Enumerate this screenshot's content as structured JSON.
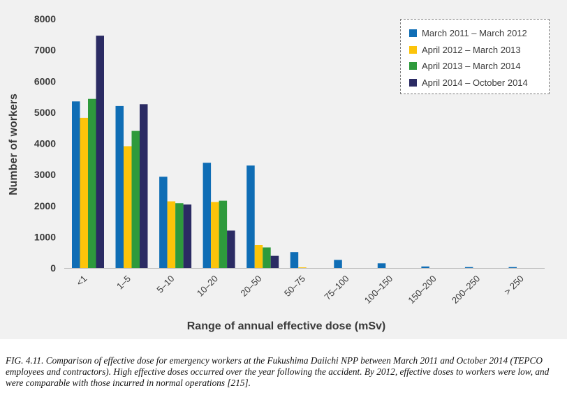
{
  "chart_data": {
    "type": "bar",
    "title": "",
    "xlabel": "Range of annual effective dose (mSv)",
    "ylabel": "Number of workers",
    "ylim": [
      0,
      8000
    ],
    "yticks": [
      0,
      1000,
      2000,
      3000,
      4000,
      5000,
      6000,
      7000,
      8000
    ],
    "grid": false,
    "legend_position": "top-right",
    "categories": [
      "<1",
      "1–5",
      "5–10",
      "10–20",
      "20–50",
      "50–75",
      "75–100",
      "100–150",
      "150–200",
      "200–250",
      "> 250"
    ],
    "series": [
      {
        "name": "March 2011 – March 2012",
        "color": "#0f6db5",
        "values": [
          5350,
          5200,
          2930,
          3380,
          3290,
          510,
          260,
          150,
          50,
          30,
          30
        ]
      },
      {
        "name": "April 2012 – March 2013",
        "color": "#fcc40a",
        "values": [
          4820,
          3910,
          2140,
          2120,
          740,
          20,
          0,
          0,
          0,
          0,
          0
        ]
      },
      {
        "name": "April 2013 – March 2014",
        "color": "#2e9a3c",
        "values": [
          5430,
          4400,
          2080,
          2160,
          660,
          0,
          0,
          0,
          0,
          0,
          0
        ]
      },
      {
        "name": "April 2014 – October 2014",
        "color": "#2b2b63",
        "values": [
          7460,
          5260,
          2040,
          1200,
          390,
          0,
          0,
          0,
          0,
          0,
          0
        ]
      }
    ]
  },
  "caption": "FIG. 4.11. Comparison of effective dose for emergency workers at the Fukushima Daiichi NPP between March 2011 and October 2014 (TEPCO employees and contractors). High effective doses occurred over the year following the accident. By 2012, effective doses to workers were low, and were comparable with those incurred in normal operations [215]."
}
